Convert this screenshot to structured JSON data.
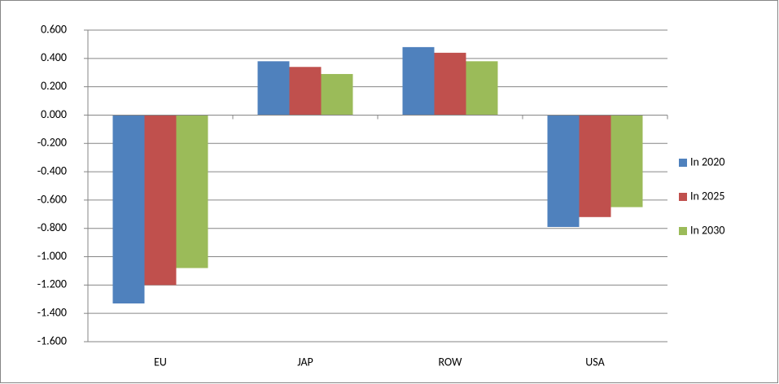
{
  "chart_data": {
    "type": "bar",
    "categories": [
      "EU",
      "JAP",
      "ROW",
      "USA"
    ],
    "series": [
      {
        "name": "In 2020",
        "color": "#4f81bd",
        "values": [
          -1.33,
          0.38,
          0.48,
          -0.79
        ]
      },
      {
        "name": "In 2025",
        "color": "#c0504d",
        "values": [
          -1.2,
          0.34,
          0.44,
          -0.72
        ]
      },
      {
        "name": "In 2030",
        "color": "#9bbb59",
        "values": [
          -1.08,
          0.29,
          0.38,
          -0.65
        ]
      }
    ],
    "ylim": [
      -1.6,
      0.6
    ],
    "yticks": [
      {
        "value": 0.6,
        "label": "0.600"
      },
      {
        "value": 0.4,
        "label": "0.400"
      },
      {
        "value": 0.2,
        "label": "0.200"
      },
      {
        "value": 0,
        "label": "0.000"
      },
      {
        "value": -0.2,
        "label": "-0.200"
      },
      {
        "value": -0.4,
        "label": "-0.400"
      },
      {
        "value": -0.6,
        "label": "-0.600"
      },
      {
        "value": -0.8,
        "label": "-0.800"
      },
      {
        "value": -1.0,
        "label": "-1.000"
      },
      {
        "value": -1.2,
        "label": "-1.200"
      },
      {
        "value": -1.4,
        "label": "-1.400"
      },
      {
        "value": -1.6,
        "label": "-1.600"
      }
    ],
    "grid": true,
    "legend": "right"
  }
}
